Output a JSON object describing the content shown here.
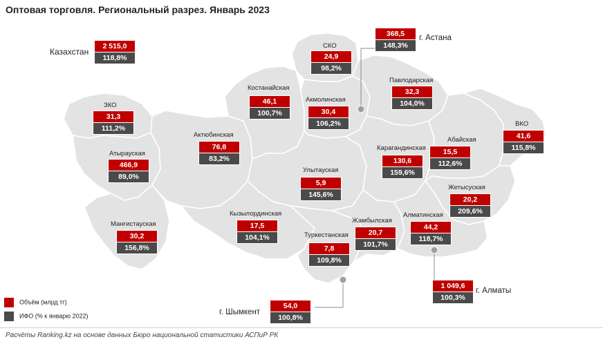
{
  "title": "Оптовая торговля. Региональный разрез. Январь 2023",
  "kazakhstan": {
    "label": "Казахстан",
    "value": "2 515,0",
    "index": "118,8%"
  },
  "regions": [
    {
      "name": "ЗКО",
      "value": "31,3",
      "index": "111,2%"
    },
    {
      "name": "Атырауская",
      "value": "466,9",
      "index": "89,0%"
    },
    {
      "name": "Мангистауская",
      "value": "30,2",
      "index": "156,8%"
    },
    {
      "name": "Актюбинская",
      "value": "76,8",
      "index": "83,2%"
    },
    {
      "name": "Костанайская",
      "value": "46,1",
      "index": "100,7%"
    },
    {
      "name": "СКО",
      "value": "24,9",
      "index": "98,2%"
    },
    {
      "name": "Акмолинская",
      "value": "30,4",
      "index": "106,2%"
    },
    {
      "name": "Павлодарская",
      "value": "32,3",
      "index": "104,0%"
    },
    {
      "name": "Кызылординская",
      "value": "17,5",
      "index": "104,1%"
    },
    {
      "name": "Улытауская",
      "value": "5,9",
      "index": "145,6%"
    },
    {
      "name": "Карагандинская",
      "value": "130,6",
      "index": "159,6%"
    },
    {
      "name": "Абайская",
      "value": "15,5",
      "index": "112,6%"
    },
    {
      "name": "ВКО",
      "value": "41,6",
      "index": "115,8%"
    },
    {
      "name": "Жетысуская",
      "value": "20,2",
      "index": "209,6%"
    },
    {
      "name": "Алматинская",
      "value": "44,2",
      "index": "118,7%"
    },
    {
      "name": "Жамбылская",
      "value": "20,7",
      "index": "101,7%"
    },
    {
      "name": "Туркестанская",
      "value": "7,8",
      "index": "109,8%"
    }
  ],
  "cities": [
    {
      "name": "г. Астана",
      "value": "368,5",
      "index": "148,3%"
    },
    {
      "name": "г. Алматы",
      "value": "1 049,6",
      "index": "100,3%"
    },
    {
      "name": "г. Шымкент",
      "value": "54,0",
      "index": "100,8%"
    }
  ],
  "legend": {
    "volume": "Объём (млрд тг)",
    "ifo": "ИФО (% к январю 2022)"
  },
  "colors": {
    "volume": "#c00000",
    "ifo": "#4a4a4a",
    "land": "#e3e3e3"
  },
  "footer": "Расчёты Ranking.kz на основе данных Бюро национальной статистики АСПиР РК"
}
